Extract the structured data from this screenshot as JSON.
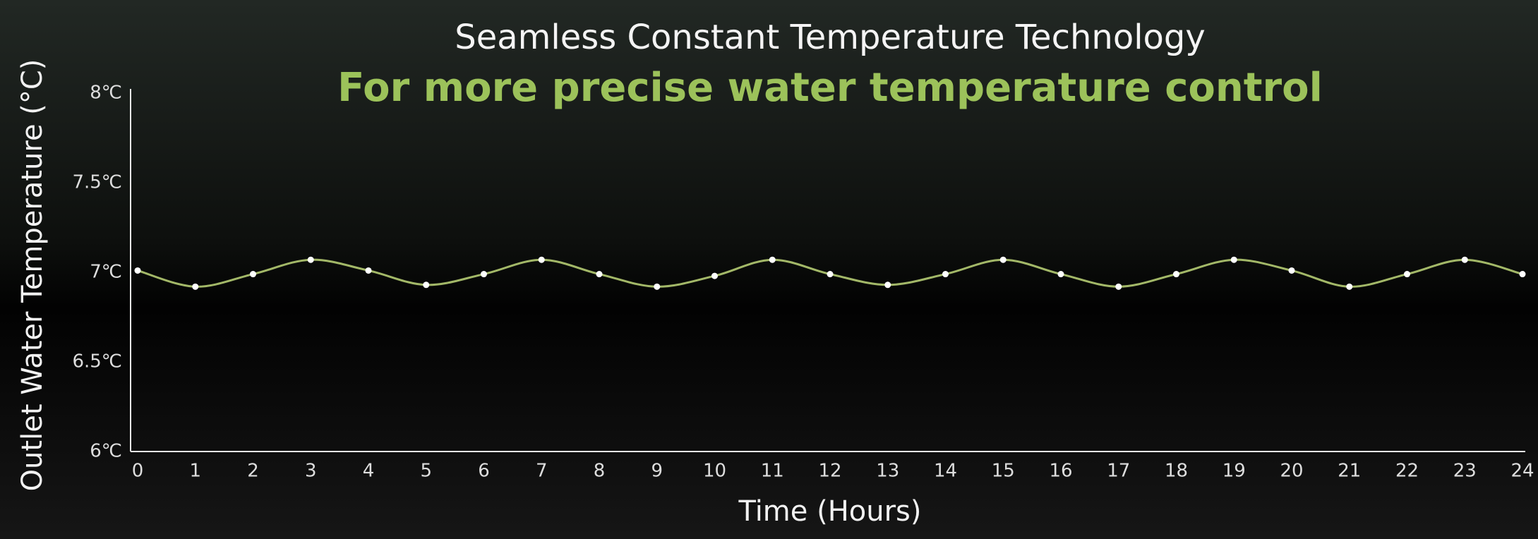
{
  "chart_data": {
    "type": "line",
    "title": "Seamless Constant Temperature Technology",
    "subtitle": "For more precise water temperature control",
    "x_label": "Time (Hours)",
    "y_label": "Outlet Water Temperature (°C)",
    "x": [
      0,
      1,
      2,
      3,
      4,
      5,
      6,
      7,
      8,
      9,
      10,
      11,
      12,
      13,
      14,
      15,
      16,
      17,
      18,
      19,
      20,
      21,
      22,
      23,
      24
    ],
    "series": [
      {
        "color": "#a3b868",
        "values": [
          7.01,
          6.92,
          6.99,
          7.07,
          7.01,
          6.93,
          6.99,
          7.07,
          6.99,
          6.92,
          6.98,
          7.07,
          6.99,
          6.93,
          6.99,
          7.07,
          6.99,
          6.92,
          6.99,
          7.07,
          7.01,
          6.92,
          6.99,
          7.07,
          6.99
        ]
      }
    ],
    "xlim": [
      0,
      24
    ],
    "xticks": [
      0,
      1,
      2,
      3,
      4,
      5,
      6,
      7,
      8,
      9,
      10,
      11,
      12,
      13,
      14,
      15,
      16,
      17,
      18,
      19,
      20,
      21,
      22,
      23,
      24
    ],
    "ylim": [
      6,
      8
    ],
    "yticks": [
      {
        "value": 6,
        "label": "6℃"
      },
      {
        "value": 6.5,
        "label": "6.5℃"
      },
      {
        "value": 7,
        "label": "7℃"
      },
      {
        "value": 7.5,
        "label": "7.5℃"
      },
      {
        "value": 8,
        "label": "8℃"
      }
    ],
    "grid": false
  }
}
